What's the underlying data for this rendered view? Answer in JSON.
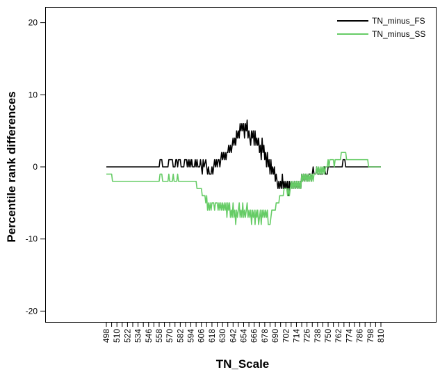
{
  "chart_data": {
    "type": "line",
    "xlabel": "TN_Scale",
    "ylabel": "Percentile rank differences",
    "ylim": [
      -22,
      22
    ],
    "xlim": [
      492,
      816
    ],
    "yticks": [
      -20,
      -10,
      0,
      10,
      20
    ],
    "xticks": [
      498,
      510,
      522,
      534,
      546,
      558,
      570,
      582,
      594,
      606,
      618,
      630,
      642,
      654,
      666,
      678,
      690,
      702,
      714,
      726,
      738,
      750,
      762,
      774,
      786,
      798,
      810
    ],
    "x_minor_ticks": [
      504,
      516,
      528,
      540,
      552,
      564,
      576,
      588,
      600,
      612,
      624,
      636,
      648,
      660,
      672,
      684,
      696,
      708,
      720,
      732,
      744,
      756,
      768,
      780,
      792,
      804
    ],
    "grid": false,
    "legend_position": "top-right",
    "series": [
      {
        "name": "TN_minus_FS",
        "color": "#000000",
        "points": [
          [
            498,
            0
          ],
          [
            558,
            0
          ],
          [
            559,
            1
          ],
          [
            561,
            1
          ],
          [
            562,
            0
          ],
          [
            568,
            0
          ],
          [
            569,
            1
          ],
          [
            573,
            1
          ],
          [
            574,
            0
          ],
          [
            576,
            0
          ],
          [
            577,
            1
          ],
          [
            578,
            1
          ],
          [
            579,
            0
          ],
          [
            580,
            1
          ],
          [
            582,
            1
          ],
          [
            583,
            0
          ],
          [
            586,
            0
          ],
          [
            587,
            1
          ],
          [
            589,
            1
          ],
          [
            590,
            0
          ],
          [
            591,
            1
          ],
          [
            592,
            0
          ],
          [
            593,
            1
          ],
          [
            594,
            0
          ],
          [
            595,
            1
          ],
          [
            596,
            0
          ],
          [
            598,
            0
          ],
          [
            599,
            1
          ],
          [
            600,
            0
          ],
          [
            601,
            1
          ],
          [
            602,
            0
          ],
          [
            604,
            0
          ],
          [
            605,
            1
          ],
          [
            606,
            0
          ],
          [
            607,
            -1
          ],
          [
            608,
            1
          ],
          [
            609,
            0
          ],
          [
            611,
            1
          ],
          [
            612,
            0
          ],
          [
            613,
            -1
          ],
          [
            614,
            0
          ],
          [
            615,
            -1
          ],
          [
            617,
            -1
          ],
          [
            618,
            0
          ],
          [
            619,
            -1
          ],
          [
            620,
            0
          ],
          [
            621,
            1
          ],
          [
            622,
            0
          ],
          [
            623,
            1
          ],
          [
            624,
            0
          ],
          [
            625,
            1
          ],
          [
            626,
            1
          ],
          [
            627,
            0
          ],
          [
            628,
            1
          ],
          [
            629,
            2
          ],
          [
            630,
            1
          ],
          [
            631,
            2
          ],
          [
            632,
            1
          ],
          [
            633,
            2
          ],
          [
            634,
            1
          ],
          [
            635,
            2
          ],
          [
            636,
            2
          ],
          [
            637,
            3
          ],
          [
            638,
            2
          ],
          [
            639,
            3
          ],
          [
            640,
            2
          ],
          [
            641,
            3
          ],
          [
            642,
            4
          ],
          [
            643,
            3
          ],
          [
            644,
            4
          ],
          [
            645,
            3
          ],
          [
            646,
            5
          ],
          [
            647,
            4
          ],
          [
            648,
            5
          ],
          [
            649,
            4
          ],
          [
            650,
            6
          ],
          [
            651,
            5
          ],
          [
            652,
            6
          ],
          [
            653,
            5
          ],
          [
            654,
            6
          ],
          [
            655,
            4
          ],
          [
            656,
            6
          ],
          [
            657,
            5
          ],
          [
            658,
            6.5
          ],
          [
            659,
            4
          ],
          [
            660,
            5
          ],
          [
            661,
            4
          ],
          [
            662,
            3
          ],
          [
            663,
            5
          ],
          [
            664,
            4
          ],
          [
            665,
            5
          ],
          [
            666,
            3
          ],
          [
            667,
            5
          ],
          [
            668,
            3
          ],
          [
            669,
            4
          ],
          [
            670,
            3
          ],
          [
            671,
            4
          ],
          [
            672,
            2
          ],
          [
            673,
            3
          ],
          [
            674,
            1
          ],
          [
            675,
            4
          ],
          [
            676,
            2
          ],
          [
            677,
            3
          ],
          [
            678,
            1
          ],
          [
            679,
            2
          ],
          [
            680,
            0
          ],
          [
            681,
            2
          ],
          [
            682,
            0
          ],
          [
            683,
            1
          ],
          [
            684,
            -1
          ],
          [
            685,
            1
          ],
          [
            686,
            -1
          ],
          [
            687,
            0
          ],
          [
            688,
            -1
          ],
          [
            689,
            0
          ],
          [
            690,
            -2
          ],
          [
            691,
            -1
          ],
          [
            692,
            -2
          ],
          [
            693,
            -3
          ],
          [
            694,
            -2
          ],
          [
            695,
            -3
          ],
          [
            696,
            -2
          ],
          [
            697,
            -3
          ],
          [
            698,
            -1
          ],
          [
            699,
            -3
          ],
          [
            700,
            -2
          ],
          [
            701,
            -3
          ],
          [
            702,
            -2
          ],
          [
            703,
            -3
          ],
          [
            704,
            -2
          ],
          [
            705,
            -4
          ],
          [
            706,
            -2
          ],
          [
            707,
            -3
          ],
          [
            708,
            -2
          ],
          [
            709,
            -3
          ],
          [
            710,
            -2
          ],
          [
            711,
            -3
          ],
          [
            712,
            -2
          ],
          [
            713,
            -3
          ],
          [
            714,
            -2
          ],
          [
            715,
            -3
          ],
          [
            716,
            -2
          ],
          [
            717,
            -3
          ],
          [
            718,
            -2
          ],
          [
            719,
            -3
          ],
          [
            720,
            -1
          ],
          [
            721,
            -2
          ],
          [
            722,
            -1
          ],
          [
            723,
            -2
          ],
          [
            724,
            -1
          ],
          [
            725,
            -2
          ],
          [
            726,
            -1
          ],
          [
            727,
            -2
          ],
          [
            728,
            -1
          ],
          [
            730,
            -1
          ],
          [
            731,
            -2
          ],
          [
            732,
            -1
          ],
          [
            733,
            0
          ],
          [
            734,
            -1
          ],
          [
            736,
            -1
          ],
          [
            737,
            0
          ],
          [
            738,
            -1
          ],
          [
            744,
            -1
          ],
          [
            745,
            0
          ],
          [
            746,
            0
          ],
          [
            747,
            -1
          ],
          [
            749,
            -1
          ],
          [
            750,
            0
          ],
          [
            766,
            0
          ],
          [
            767,
            1
          ],
          [
            769,
            1
          ],
          [
            770,
            0
          ],
          [
            810,
            0
          ]
        ]
      },
      {
        "name": "TN_minus_SS",
        "color": "#66cc66",
        "points": [
          [
            498,
            -1
          ],
          [
            504,
            -1
          ],
          [
            505,
            -2
          ],
          [
            558,
            -2
          ],
          [
            559,
            -1
          ],
          [
            561,
            -1
          ],
          [
            562,
            -2
          ],
          [
            568,
            -2
          ],
          [
            569,
            -1
          ],
          [
            570,
            -2
          ],
          [
            573,
            -2
          ],
          [
            574,
            -1
          ],
          [
            575,
            -2
          ],
          [
            578,
            -2
          ],
          [
            579,
            -1
          ],
          [
            580,
            -2
          ],
          [
            600,
            -2
          ],
          [
            601,
            -3
          ],
          [
            606,
            -3
          ],
          [
            607,
            -4
          ],
          [
            610,
            -4
          ],
          [
            611,
            -5
          ],
          [
            612,
            -4
          ],
          [
            613,
            -6
          ],
          [
            614,
            -5
          ],
          [
            615,
            -6
          ],
          [
            616,
            -5
          ],
          [
            617,
            -6
          ],
          [
            618,
            -5
          ],
          [
            620,
            -5
          ],
          [
            621,
            -6
          ],
          [
            622,
            -5
          ],
          [
            624,
            -5
          ],
          [
            625,
            -6
          ],
          [
            626,
            -5
          ],
          [
            627,
            -6
          ],
          [
            628,
            -5
          ],
          [
            629,
            -6
          ],
          [
            630,
            -5
          ],
          [
            631,
            -6
          ],
          [
            632,
            -5
          ],
          [
            633,
            -6
          ],
          [
            634,
            -5
          ],
          [
            635,
            -7
          ],
          [
            636,
            -5
          ],
          [
            637,
            -6
          ],
          [
            638,
            -5
          ],
          [
            639,
            -7
          ],
          [
            640,
            -6
          ],
          [
            641,
            -7
          ],
          [
            642,
            -5
          ],
          [
            643,
            -7
          ],
          [
            644,
            -6
          ],
          [
            645,
            -8
          ],
          [
            646,
            -6
          ],
          [
            647,
            -7
          ],
          [
            648,
            -6
          ],
          [
            649,
            -5
          ],
          [
            650,
            -7
          ],
          [
            651,
            -6
          ],
          [
            652,
            -7
          ],
          [
            653,
            -5
          ],
          [
            654,
            -7
          ],
          [
            655,
            -6
          ],
          [
            656,
            -7
          ],
          [
            657,
            -6
          ],
          [
            658,
            -5
          ],
          [
            659,
            -7
          ],
          [
            660,
            -6
          ],
          [
            661,
            -7
          ],
          [
            662,
            -6
          ],
          [
            663,
            -8
          ],
          [
            664,
            -6
          ],
          [
            665,
            -7
          ],
          [
            666,
            -6
          ],
          [
            667,
            -8
          ],
          [
            668,
            -6
          ],
          [
            669,
            -7
          ],
          [
            670,
            -6
          ],
          [
            671,
            -8
          ],
          [
            672,
            -7
          ],
          [
            673,
            -6
          ],
          [
            674,
            -8
          ],
          [
            675,
            -6
          ],
          [
            676,
            -7
          ],
          [
            677,
            -6
          ],
          [
            678,
            -7
          ],
          [
            679,
            -6
          ],
          [
            680,
            -7
          ],
          [
            681,
            -6
          ],
          [
            682,
            -8
          ],
          [
            684,
            -8
          ],
          [
            685,
            -7
          ],
          [
            686,
            -6
          ],
          [
            690,
            -6
          ],
          [
            691,
            -5
          ],
          [
            694,
            -5
          ],
          [
            695,
            -4
          ],
          [
            699,
            -4
          ],
          [
            700,
            -3
          ],
          [
            703,
            -3
          ],
          [
            704,
            -4
          ],
          [
            705,
            -3
          ],
          [
            706,
            -4
          ],
          [
            707,
            -3
          ],
          [
            708,
            -2
          ],
          [
            709,
            -3
          ],
          [
            710,
            -2
          ],
          [
            711,
            -3
          ],
          [
            712,
            -2
          ],
          [
            713,
            -3
          ],
          [
            714,
            -2
          ],
          [
            715,
            -3
          ],
          [
            716,
            -2
          ],
          [
            717,
            -3
          ],
          [
            718,
            -2
          ],
          [
            719,
            -3
          ],
          [
            720,
            -1
          ],
          [
            721,
            -2
          ],
          [
            722,
            -1
          ],
          [
            723,
            -2
          ],
          [
            724,
            -1
          ],
          [
            725,
            -2
          ],
          [
            726,
            -1
          ],
          [
            727,
            -2
          ],
          [
            728,
            -1
          ],
          [
            729,
            -2
          ],
          [
            730,
            -1
          ],
          [
            731,
            -2
          ],
          [
            732,
            -1
          ],
          [
            733,
            -2
          ],
          [
            734,
            -1
          ],
          [
            736,
            -1
          ],
          [
            737,
            0
          ],
          [
            738,
            -1
          ],
          [
            739,
            0
          ],
          [
            740,
            -1
          ],
          [
            741,
            0
          ],
          [
            742,
            -1
          ],
          [
            743,
            0
          ],
          [
            744,
            -1
          ],
          [
            745,
            0
          ],
          [
            746,
            -1
          ],
          [
            747,
            0
          ],
          [
            749,
            0
          ],
          [
            750,
            1
          ],
          [
            751,
            0
          ],
          [
            752,
            1
          ],
          [
            756,
            1
          ],
          [
            757,
            0
          ],
          [
            758,
            1
          ],
          [
            764,
            1
          ],
          [
            765,
            2
          ],
          [
            770,
            2
          ],
          [
            771,
            1
          ],
          [
            795,
            1
          ],
          [
            796,
            0
          ],
          [
            810,
            0
          ]
        ]
      }
    ]
  }
}
